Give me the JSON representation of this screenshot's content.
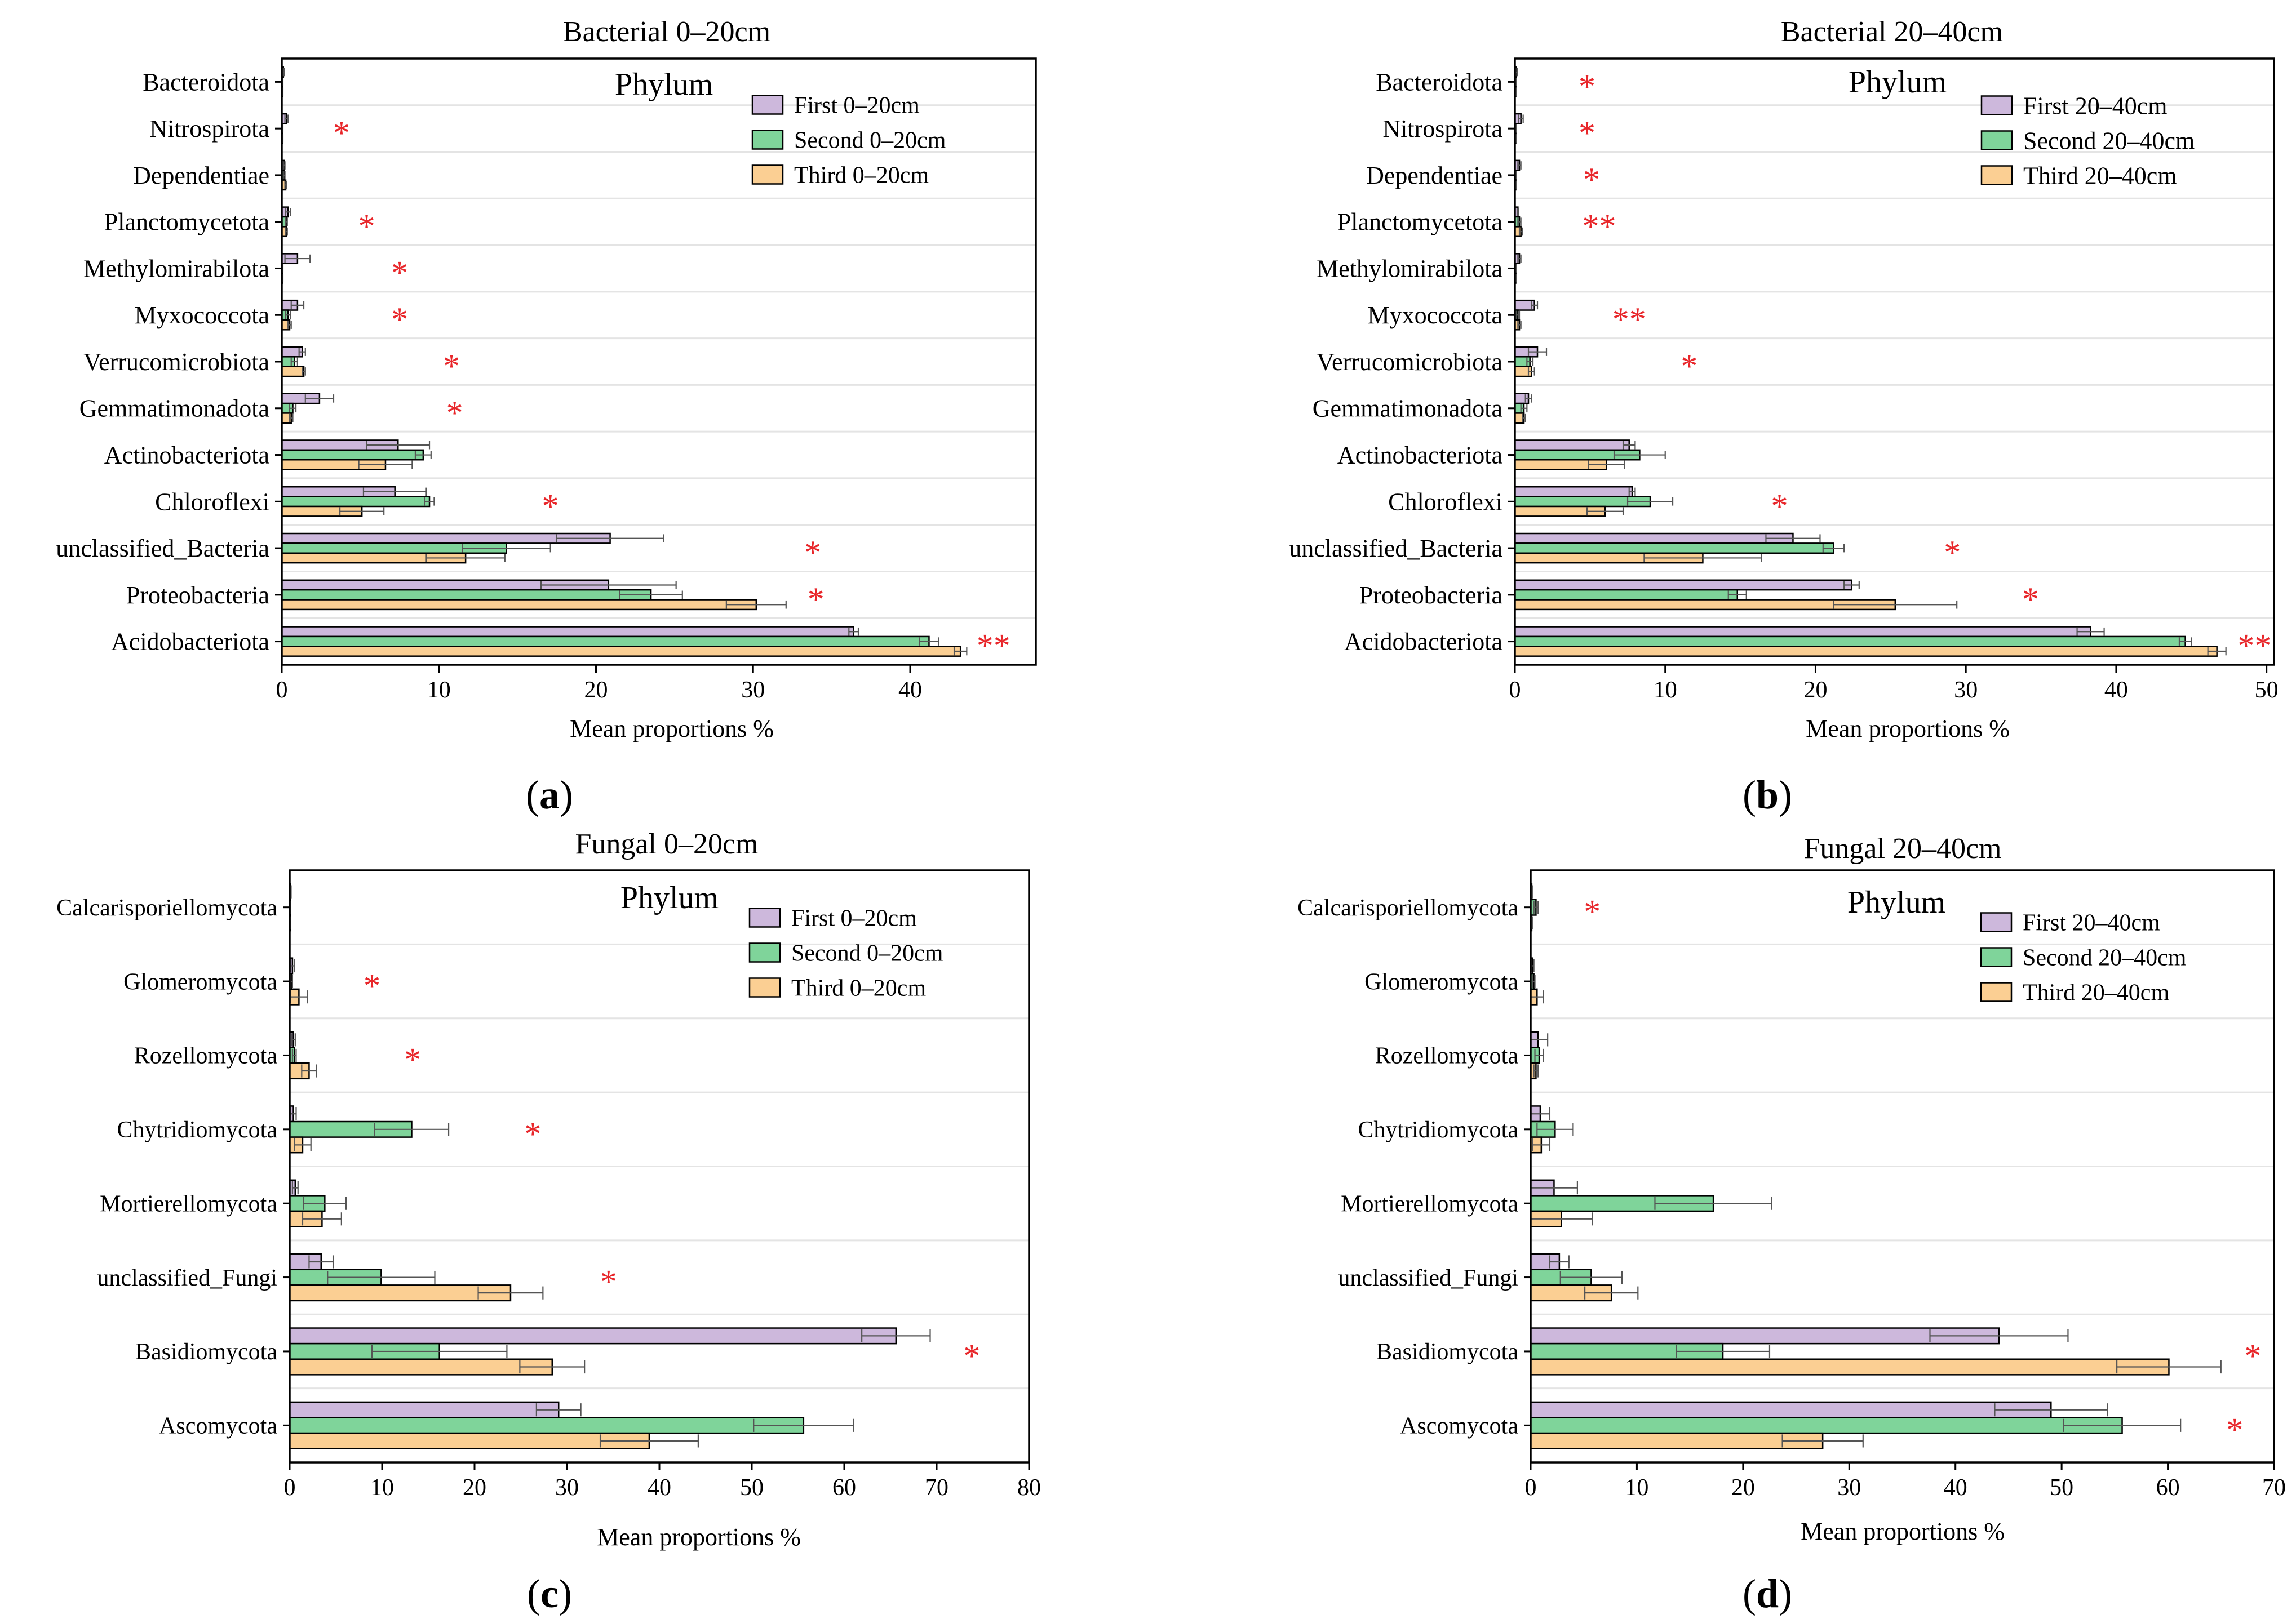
{
  "colors": {
    "first": "#cdb8dc",
    "second": "#7fd49a",
    "third": "#fbcf93",
    "star": "#e8262a",
    "axis": "#000000",
    "grid": "#e4e4e4",
    "errorbar": "#555555"
  },
  "chart_data": [
    {
      "type": "bar",
      "orientation": "horizontal",
      "panel_label": "a",
      "title": "Bacterial 0–20cm",
      "annotation": "Phylum",
      "xlabel": "Mean proportions %",
      "xlim": [
        0,
        48
      ],
      "xticks": [
        0,
        10,
        20,
        30,
        40
      ],
      "categories": [
        "Bacteroidota",
        "Nitrospirota",
        "Dependentiae",
        "Planctomycetota",
        "Methylomirabilota",
        "Myxococcota",
        "Verrucomicrobiota",
        "Gemmatimonadota",
        "Actinobacteriota",
        "Chloroflexi",
        "unclassified_Bacteria",
        "Proteobacteria",
        "Acidobacteriota"
      ],
      "significance": [
        "",
        "*",
        "",
        "*",
        "*",
        "*",
        "*",
        "*",
        "",
        "*",
        "*",
        "*",
        "**"
      ],
      "star_x": [
        null,
        3.8,
        null,
        5.4,
        7.5,
        7.5,
        10.8,
        11.0,
        null,
        17.1,
        33.8,
        34.0,
        45.3
      ],
      "series": [
        {
          "name": "First 0–20cm",
          "values": [
            0.1,
            0.3,
            0.15,
            0.4,
            1.0,
            1.0,
            1.3,
            2.4,
            7.4,
            7.2,
            20.9,
            20.8,
            36.4
          ],
          "errors": [
            0.05,
            0.1,
            0.05,
            0.15,
            0.8,
            0.4,
            0.2,
            0.9,
            2.0,
            2.0,
            3.4,
            4.3,
            0.3
          ]
        },
        {
          "name": "Second 0–20cm",
          "values": [
            0.05,
            0.05,
            0.15,
            0.3,
            0.05,
            0.4,
            0.8,
            0.7,
            9.0,
            9.4,
            14.3,
            23.5,
            41.2
          ],
          "errors": [
            0.02,
            0.02,
            0.05,
            0.05,
            0.02,
            0.15,
            0.2,
            0.2,
            0.5,
            0.3,
            2.8,
            2.0,
            0.6
          ]
        },
        {
          "name": "Third 0–20cm",
          "values": [
            0.05,
            0.05,
            0.25,
            0.3,
            0.05,
            0.5,
            1.4,
            0.6,
            6.6,
            5.1,
            11.7,
            30.2,
            43.2
          ],
          "errors": [
            0.02,
            0.02,
            0.05,
            0.05,
            0.02,
            0.1,
            0.1,
            0.1,
            1.7,
            1.4,
            2.5,
            1.9,
            0.4
          ]
        }
      ]
    },
    {
      "type": "bar",
      "orientation": "horizontal",
      "panel_label": "b",
      "title": "Bacterial 20–40cm",
      "annotation": "Phylum",
      "xlabel": "Mean proportions %",
      "xlim": [
        0,
        50.5
      ],
      "xticks": [
        0,
        10,
        20,
        30,
        40,
        50
      ],
      "categories": [
        "Bacteroidota",
        "Nitrospirota",
        "Dependentiae",
        "Planctomycetota",
        "Methylomirabilota",
        "Myxococcota",
        "Verrucomicrobiota",
        "Gemmatimonadota",
        "Actinobacteriota",
        "Chloroflexi",
        "unclassified_Bacteria",
        "Proteobacteria",
        "Acidobacteriota"
      ],
      "significance": [
        "*",
        "*",
        "*",
        "**",
        "",
        "**",
        "*",
        "",
        "",
        "*",
        "*",
        "*",
        "**"
      ],
      "star_x": [
        4.8,
        4.8,
        5.1,
        5.6,
        null,
        7.6,
        11.6,
        null,
        null,
        17.6,
        29.1,
        34.3,
        49.2
      ],
      "series": [
        {
          "name": "First 20–40cm",
          "values": [
            0.1,
            0.4,
            0.3,
            0.2,
            0.3,
            1.3,
            1.5,
            0.9,
            7.6,
            7.8,
            18.5,
            22.4,
            38.3
          ],
          "errors": [
            0.05,
            0.15,
            0.1,
            0.05,
            0.1,
            0.2,
            0.6,
            0.2,
            0.4,
            0.2,
            1.8,
            0.5,
            0.9
          ]
        },
        {
          "name": "Second 20–40cm",
          "values": [
            0.05,
            0.05,
            0.05,
            0.3,
            0.05,
            0.2,
            1.0,
            0.6,
            8.3,
            9.0,
            21.2,
            14.8,
            44.6
          ],
          "errors": [
            0.02,
            0.02,
            0.02,
            0.1,
            0.02,
            0.1,
            0.2,
            0.2,
            1.7,
            1.5,
            0.7,
            0.6,
            0.4
          ]
        },
        {
          "name": "Third 20–40cm",
          "values": [
            0.05,
            0.05,
            0.05,
            0.4,
            0.05,
            0.3,
            1.1,
            0.6,
            6.1,
            6.0,
            12.5,
            25.3,
            46.7
          ],
          "errors": [
            0.02,
            0.02,
            0.02,
            0.1,
            0.02,
            0.1,
            0.2,
            0.1,
            1.2,
            1.2,
            3.9,
            4.1,
            0.6
          ]
        }
      ]
    },
    {
      "type": "bar",
      "orientation": "horizontal",
      "panel_label": "c",
      "title": "Fungal 0–20cm",
      "annotation": "Phylum",
      "xlabel": "Mean proportions %",
      "xlim": [
        0,
        80
      ],
      "xticks": [
        0,
        10,
        20,
        30,
        40,
        50,
        60,
        70,
        80
      ],
      "categories": [
        "Calcarisporiellomycota",
        "Glomeromycota",
        "Rozellomycota",
        "Chytridiomycota",
        "Mortierellomycota",
        "unclassified_Fungi",
        "Basidiomycota",
        "Ascomycota"
      ],
      "significance": [
        "",
        "*",
        "*",
        "*",
        "",
        "*",
        "*",
        ""
      ],
      "star_x": [
        null,
        8.9,
        13.3,
        26.3,
        null,
        34.5,
        73.8,
        null
      ],
      "series": [
        {
          "name": "First 0–20cm",
          "values": [
            0.1,
            0.3,
            0.4,
            0.4,
            0.6,
            3.4,
            65.6,
            29.1
          ],
          "errors": [
            0.05,
            0.2,
            0.2,
            0.3,
            0.3,
            1.3,
            3.7,
            2.4
          ]
        },
        {
          "name": "Second 0–20cm",
          "values": [
            0.05,
            0.2,
            0.5,
            13.2,
            3.8,
            9.9,
            16.2,
            55.6
          ],
          "errors": [
            0.02,
            0.1,
            0.2,
            4.0,
            2.3,
            5.8,
            7.3,
            5.4
          ]
        },
        {
          "name": "Third 0–20cm",
          "values": [
            0.05,
            1.0,
            2.1,
            1.4,
            3.5,
            23.9,
            28.4,
            38.9
          ],
          "errors": [
            0.02,
            0.9,
            0.8,
            0.9,
            2.1,
            3.5,
            3.5,
            5.3
          ]
        }
      ]
    },
    {
      "type": "bar",
      "orientation": "horizontal",
      "panel_label": "d",
      "title": "Fungal 20–40cm",
      "annotation": "Phylum",
      "xlabel": "Mean proportions %",
      "xlim": [
        0,
        70
      ],
      "xticks": [
        0,
        10,
        20,
        30,
        40,
        50,
        60,
        70
      ],
      "categories": [
        "Calcarisporiellomycota",
        "Glomeromycota",
        "Rozellomycota",
        "Chytridiomycota",
        "Mortierellomycota",
        "unclassified_Fungi",
        "Basidiomycota",
        "Ascomycota"
      ],
      "significance": [
        "*",
        "",
        "",
        "",
        "",
        "",
        "*",
        "*"
      ],
      "star_x": [
        5.8,
        null,
        null,
        null,
        null,
        null,
        68.0,
        66.3
      ],
      "series": [
        {
          "name": "First 20–40cm",
          "values": [
            0.1,
            0.2,
            0.7,
            0.9,
            2.2,
            2.7,
            44.1,
            49.0
          ],
          "errors": [
            0.05,
            0.1,
            0.9,
            0.9,
            2.2,
            0.9,
            6.5,
            5.3
          ]
        },
        {
          "name": "Second 20–40cm",
          "values": [
            0.5,
            0.3,
            0.8,
            2.3,
            17.2,
            5.7,
            18.1,
            55.7
          ],
          "errors": [
            0.2,
            0.1,
            0.4,
            1.7,
            5.5,
            2.9,
            4.4,
            5.5
          ]
        },
        {
          "name": "Third 20–40cm",
          "values": [
            0.1,
            0.6,
            0.5,
            1.0,
            2.9,
            7.6,
            60.1,
            27.5
          ],
          "errors": [
            0.05,
            0.6,
            0.2,
            0.8,
            2.9,
            2.5,
            4.9,
            3.8
          ]
        }
      ]
    }
  ]
}
